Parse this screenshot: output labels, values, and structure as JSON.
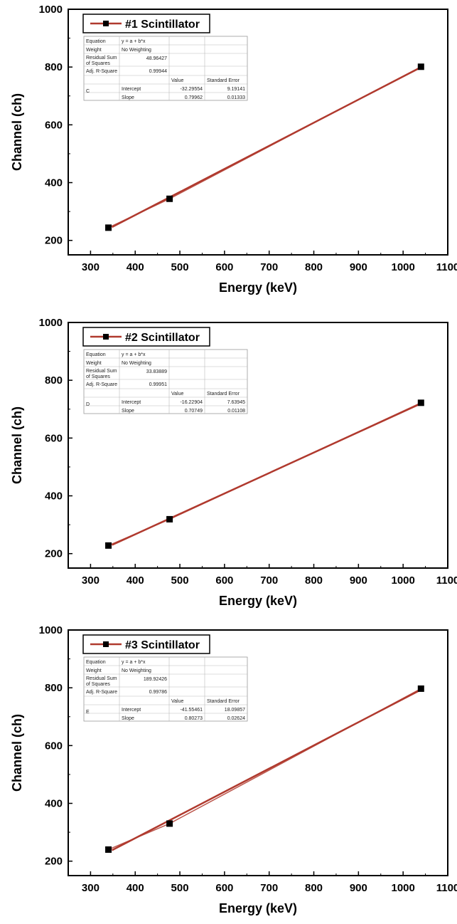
{
  "chart_data": [
    {
      "type": "scatter",
      "title": "",
      "xlabel": "Energy (keV)",
      "ylabel": "Channel (ch)",
      "xlim": [
        250,
        1100
      ],
      "ylim": [
        150,
        1000
      ],
      "xticks": [
        300,
        400,
        500,
        600,
        700,
        800,
        900,
        1000,
        1100
      ],
      "yticks": [
        200,
        400,
        600,
        800,
        1000
      ],
      "grid": false,
      "legend_placement": "top-left",
      "series": [
        {
          "name": "#1 Scintillator",
          "color": "#000000",
          "fit_color": "#b03a2e",
          "x": [
            340,
            477,
            1040
          ],
          "y": [
            244,
            344,
            801
          ]
        }
      ],
      "fit_table": {
        "equation_label": "Equation",
        "equation": "y = a + b*x",
        "weight_label": "Weight",
        "weight": "No Weighting",
        "rss_label": "Residual Sum of Squares",
        "rss": "48.96427",
        "adjr2_label": "Adj. R-Square",
        "adjr2": "0.99944",
        "value_header": "Value",
        "error_header": "Standard Error",
        "group": "C",
        "intercept_label": "Intercept",
        "intercept": "-32.29554",
        "intercept_error": "9.19141",
        "slope_label": "Slope",
        "slope": "0.79962",
        "slope_error": "0.01333"
      }
    },
    {
      "type": "scatter",
      "title": "",
      "xlabel": "Energy (keV)",
      "ylabel": "Channel (ch)",
      "xlim": [
        250,
        1100
      ],
      "ylim": [
        150,
        1000
      ],
      "xticks": [
        300,
        400,
        500,
        600,
        700,
        800,
        900,
        1000,
        1100
      ],
      "yticks": [
        200,
        400,
        600,
        800,
        1000
      ],
      "grid": false,
      "legend_placement": "top-left",
      "series": [
        {
          "name": "#2 Scintillator",
          "color": "#000000",
          "fit_color": "#b03a2e",
          "x": [
            340,
            477,
            1040
          ],
          "y": [
            228,
            319,
            722
          ]
        }
      ],
      "fit_table": {
        "equation_label": "Equation",
        "equation": "y = a + b*x",
        "weight_label": "Weight",
        "weight": "No Weighting",
        "rss_label": "Residual Sum of Squares",
        "rss": "33.83889",
        "adjr2_label": "Adj. R-Square",
        "adjr2": "0.99951",
        "value_header": "Value",
        "error_header": "Standard Error",
        "group": "D",
        "intercept_label": "Intercept",
        "intercept": "-16.22904",
        "intercept_error": "7.63945",
        "slope_label": "Slope",
        "slope": "0.70749",
        "slope_error": "0.01108"
      }
    },
    {
      "type": "scatter",
      "title": "",
      "xlabel": "Energy (keV)",
      "ylabel": "Channel (ch)",
      "xlim": [
        250,
        1100
      ],
      "ylim": [
        150,
        1000
      ],
      "xticks": [
        300,
        400,
        500,
        600,
        700,
        800,
        900,
        1000,
        1100
      ],
      "yticks": [
        200,
        400,
        600,
        800,
        1000
      ],
      "grid": false,
      "legend_placement": "top-left",
      "series": [
        {
          "name": "#3 Scintillator",
          "color": "#000000",
          "fit_color": "#b03a2e",
          "x": [
            340,
            477,
            1040
          ],
          "y": [
            240,
            330,
            797
          ]
        }
      ],
      "fit_table": {
        "equation_label": "Equation",
        "equation": "y = a + b*x",
        "weight_label": "Weight",
        "weight": "No Weighting",
        "rss_label": "Residual Sum of Squares",
        "rss": "189.92426",
        "adjr2_label": "Adj. R-Square",
        "adjr2": "0.99786",
        "value_header": "Value",
        "error_header": "Standard Error",
        "group": "E",
        "intercept_label": "Intercept",
        "intercept": "-41.55461",
        "intercept_error": "18.09857",
        "slope_label": "Slope",
        "slope": "0.80273",
        "slope_error": "0.02624"
      }
    }
  ]
}
